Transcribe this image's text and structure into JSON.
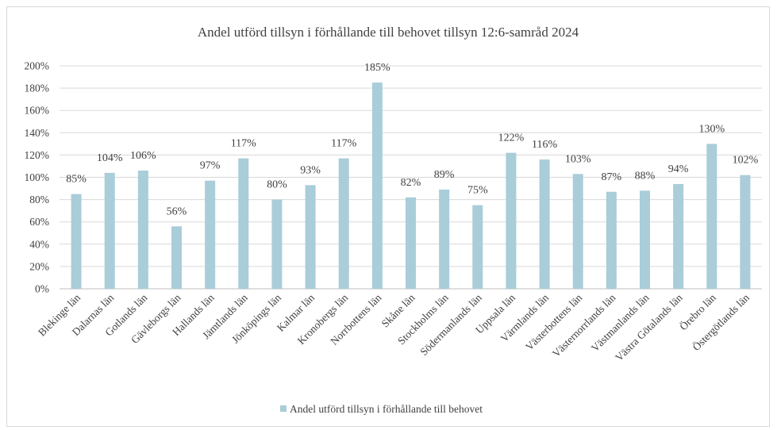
{
  "chart_data": {
    "type": "bar",
    "title": "Andel utförd tillsyn  i förhållande till behovet tillsyn  12:6-samråd 2024",
    "xlabel": "",
    "ylabel": "",
    "ylim": [
      0,
      2.0
    ],
    "yticks": [
      "0%",
      "20%",
      "40%",
      "60%",
      "80%",
      "100%",
      "120%",
      "140%",
      "160%",
      "180%",
      "200%"
    ],
    "grid": true,
    "legend_position": "bottom",
    "bar_color": "#a9cdd9",
    "categories": [
      "Blekinge län",
      "Dalarnas län",
      "Gotlands län",
      "Gävleborgs län",
      "Hallands län",
      "Jämtlands län",
      "Jönköpings län",
      "Kalmar län",
      "Kronobergs län",
      "Norrbottens län",
      "Skåne län",
      "Stockholms län",
      "Södermanlands län",
      "Uppsala län",
      "Värmlands län",
      "Västerbottens län",
      "Västernorrlands län",
      "Västmanlands län",
      "Västra Götalands län",
      "Örebro län",
      "Östergötlands län"
    ],
    "series": [
      {
        "name": "Andel utförd tillsyn i förhållande till behovet",
        "values": [
          0.85,
          1.04,
          1.06,
          0.56,
          0.97,
          1.17,
          0.8,
          0.93,
          1.17,
          1.85,
          0.82,
          0.89,
          0.75,
          1.22,
          1.16,
          1.03,
          0.87,
          0.88,
          0.94,
          1.3,
          1.02
        ],
        "labels": [
          "85%",
          "104%",
          "106%",
          "56%",
          "97%",
          "117%",
          "80%",
          "93%",
          "117%",
          "185%",
          "82%",
          "89%",
          "75%",
          "122%",
          "116%",
          "103%",
          "87%",
          "88%",
          "94%",
          "130%",
          "102%"
        ]
      }
    ]
  }
}
